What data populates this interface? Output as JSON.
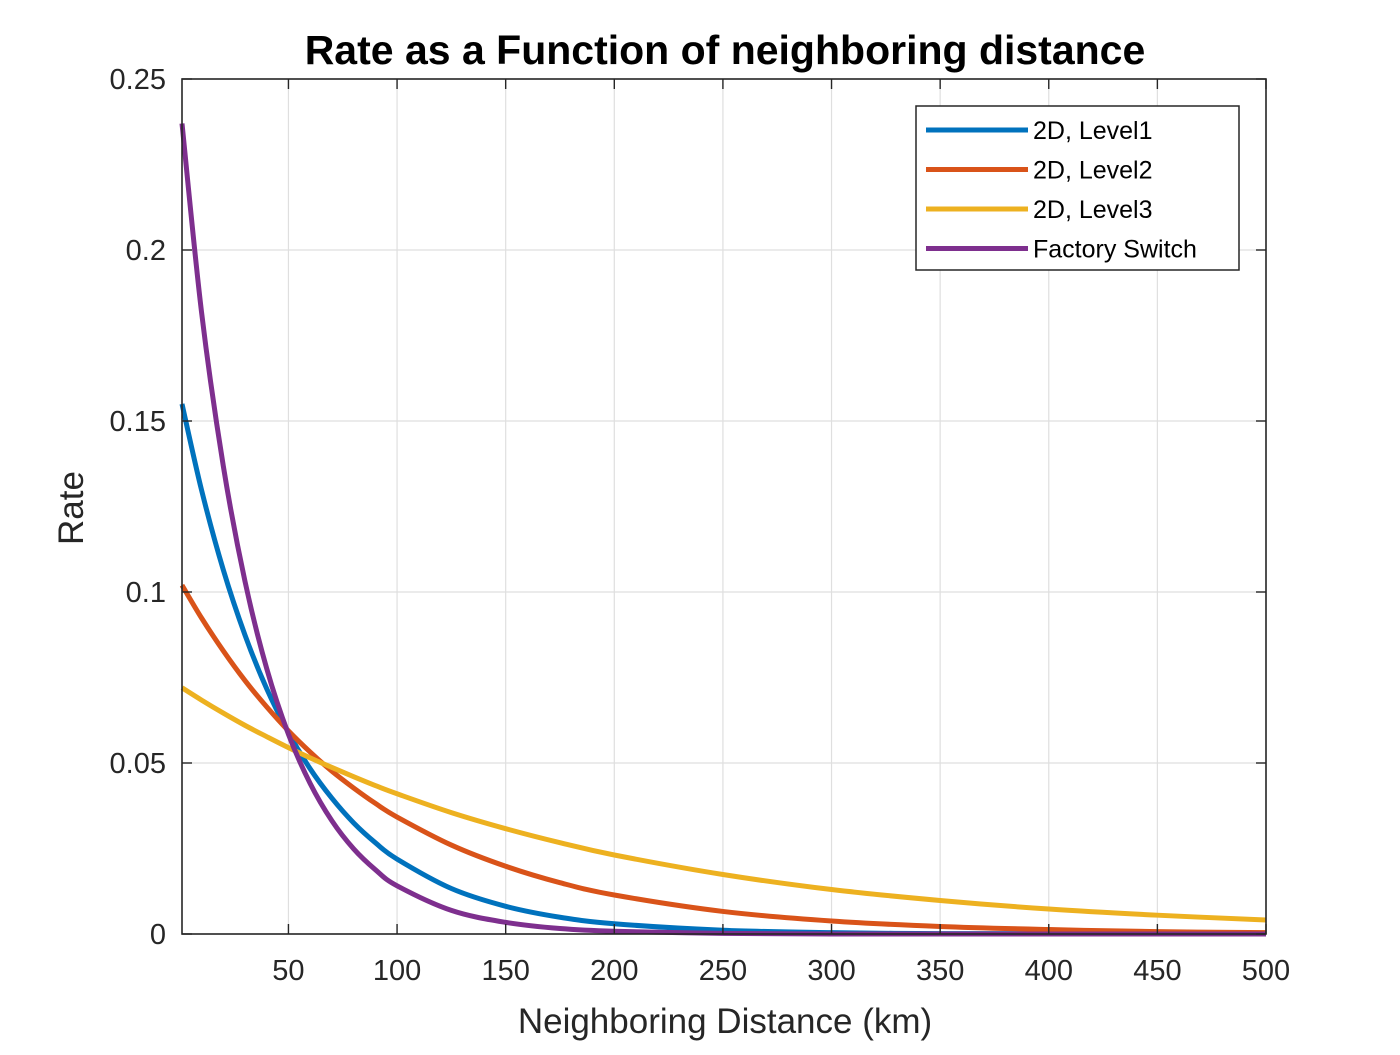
{
  "chart_data": {
    "type": "line",
    "title": "Rate as a Function of neighboring distance",
    "xlabel": "Neighboring Distance (km)",
    "ylabel": "Rate",
    "xlim": [
      1,
      500
    ],
    "ylim": [
      0,
      0.25
    ],
    "xticks": [
      50,
      100,
      150,
      200,
      250,
      300,
      350,
      400,
      450,
      500
    ],
    "yticks": [
      0,
      0.05,
      0.1,
      0.15,
      0.2,
      0.25
    ],
    "ytick_labels": [
      "0",
      "0.05",
      "0.1",
      "0.15",
      "0.2",
      "0.25"
    ],
    "grid": true,
    "legend_position": "top-right",
    "series": [
      {
        "name": "2D, Level1",
        "color": "#0072BD",
        "x": [
          1,
          10,
          20,
          30,
          40,
          50,
          60,
          70,
          80,
          90,
          100,
          125,
          150,
          175,
          200,
          250,
          300,
          350,
          400,
          450,
          500
        ],
        "y": [
          0.155,
          0.1298,
          0.1065,
          0.0874,
          0.0717,
          0.0589,
          0.0483,
          0.0397,
          0.0325,
          0.0267,
          0.0219,
          0.0133,
          0.0081,
          0.0049,
          0.003,
          0.0011,
          0.0004,
          0.0001,
          0.0001,
          0.0,
          0.0
        ]
      },
      {
        "name": "2D, Level2",
        "color": "#D95319",
        "x": [
          1,
          10,
          20,
          30,
          40,
          50,
          60,
          70,
          80,
          90,
          100,
          125,
          150,
          175,
          200,
          250,
          300,
          350,
          400,
          450,
          500
        ],
        "y": [
          0.102,
          0.0924,
          0.0828,
          0.0741,
          0.0664,
          0.0594,
          0.0532,
          0.0476,
          0.0427,
          0.0382,
          0.0342,
          0.026,
          0.0198,
          0.015,
          0.0114,
          0.0066,
          0.0038,
          0.0022,
          0.0013,
          0.0007,
          0.0004
        ]
      },
      {
        "name": "2D, Level3",
        "color": "#EDB120",
        "x": [
          1,
          10,
          20,
          30,
          40,
          50,
          60,
          70,
          80,
          90,
          100,
          125,
          150,
          175,
          200,
          250,
          300,
          350,
          400,
          450,
          500
        ],
        "y": [
          0.072,
          0.0684,
          0.0646,
          0.061,
          0.0577,
          0.0545,
          0.0515,
          0.0487,
          0.046,
          0.0434,
          0.041,
          0.0355,
          0.0308,
          0.0267,
          0.0231,
          0.0174,
          0.013,
          0.0098,
          0.0073,
          0.0055,
          0.0041
        ]
      },
      {
        "name": "Factory Switch",
        "color": "#7E2F8E",
        "x": [
          1,
          10,
          20,
          30,
          40,
          50,
          60,
          70,
          80,
          90,
          100,
          125,
          150,
          175,
          200,
          250,
          300,
          350,
          400,
          450,
          500
        ],
        "y": [
          0.237,
          0.1818,
          0.1369,
          0.1031,
          0.0776,
          0.0584,
          0.044,
          0.0331,
          0.0249,
          0.0188,
          0.0141,
          0.0069,
          0.0034,
          0.0016,
          0.0008,
          0.0002,
          0.0,
          0.0,
          0.0,
          0.0,
          0.0
        ]
      }
    ]
  }
}
